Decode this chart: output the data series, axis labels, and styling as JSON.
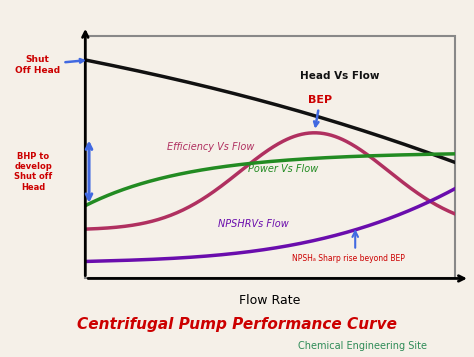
{
  "title": "Centrifugal Pump Performance Curve",
  "subtitle": "Chemical Engineering Site",
  "xlabel": "Flow Rate",
  "bg_color": "#f5f0e8",
  "border_color": "#888888",
  "title_color": "#cc0000",
  "subtitle_color": "#2e8b57",
  "curves": {
    "head": {
      "label": "Head Vs Flow",
      "color": "#111111",
      "lw": 2.5
    },
    "efficiency": {
      "label": "Efficiency Vs Flow",
      "color": "#b03060",
      "lw": 2.5
    },
    "power": {
      "label": "Power Vs Flow",
      "color": "#228b22",
      "lw": 2.5
    },
    "npshr": {
      "label": "NPSHRVs Flow",
      "color": "#6a0dad",
      "lw": 2.5
    }
  },
  "arrow_color": "#4169e1",
  "annot_color": "#cc0000"
}
